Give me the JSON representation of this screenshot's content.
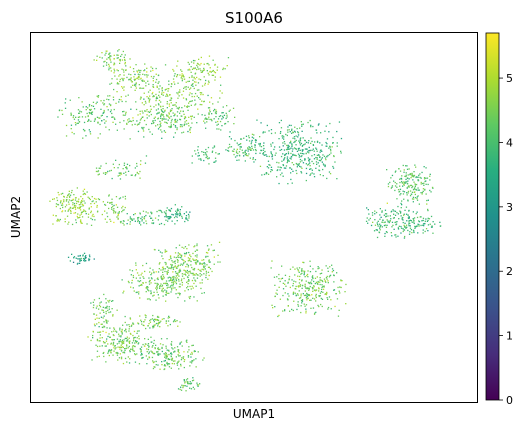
{
  "chart_data": {
    "type": "scatter",
    "title": "S100A6",
    "xlabel": "UMAP1",
    "ylabel": "UMAP2",
    "colormap": "viridis",
    "colorbar": {
      "range": [
        0,
        5.7
      ],
      "ticks": [
        0,
        1,
        2,
        3,
        4,
        5
      ],
      "tick_labels": [
        "0",
        "1",
        "2",
        "3",
        "4",
        "5"
      ]
    },
    "xticks": [],
    "yticks": [],
    "grid": false,
    "legend": "none",
    "clusters": [
      {
        "x": 0.18,
        "y": 0.93,
        "rx": 0.04,
        "ry": 0.03,
        "value": 4.5,
        "n": 60
      },
      {
        "x": 0.23,
        "y": 0.88,
        "rx": 0.05,
        "ry": 0.04,
        "value": 4.6,
        "n": 90
      },
      {
        "x": 0.38,
        "y": 0.9,
        "rx": 0.06,
        "ry": 0.04,
        "value": 4.7,
        "n": 90
      },
      {
        "x": 0.3,
        "y": 0.83,
        "rx": 0.12,
        "ry": 0.08,
        "value": 4.5,
        "n": 300
      },
      {
        "x": 0.14,
        "y": 0.78,
        "rx": 0.08,
        "ry": 0.06,
        "value": 4.2,
        "n": 150
      },
      {
        "x": 0.3,
        "y": 0.76,
        "rx": 0.07,
        "ry": 0.04,
        "value": 4.3,
        "n": 120
      },
      {
        "x": 0.42,
        "y": 0.77,
        "rx": 0.04,
        "ry": 0.04,
        "value": 4.1,
        "n": 60
      },
      {
        "x": 0.6,
        "y": 0.68,
        "rx": 0.09,
        "ry": 0.08,
        "value": 3.8,
        "n": 380
      },
      {
        "x": 0.48,
        "y": 0.69,
        "rx": 0.05,
        "ry": 0.04,
        "value": 4.0,
        "n": 100
      },
      {
        "x": 0.39,
        "y": 0.67,
        "rx": 0.03,
        "ry": 0.025,
        "value": 4.0,
        "n": 40
      },
      {
        "x": 0.85,
        "y": 0.59,
        "rx": 0.05,
        "ry": 0.05,
        "value": 4.1,
        "n": 180
      },
      {
        "x": 0.83,
        "y": 0.49,
        "rx": 0.08,
        "ry": 0.04,
        "value": 3.9,
        "n": 220
      },
      {
        "x": 0.1,
        "y": 0.53,
        "rx": 0.06,
        "ry": 0.05,
        "value": 4.7,
        "n": 180
      },
      {
        "x": 0.19,
        "y": 0.52,
        "rx": 0.03,
        "ry": 0.04,
        "value": 4.5,
        "n": 60
      },
      {
        "x": 0.25,
        "y": 0.5,
        "rx": 0.05,
        "ry": 0.02,
        "value": 4.1,
        "n": 60
      },
      {
        "x": 0.32,
        "y": 0.51,
        "rx": 0.04,
        "ry": 0.025,
        "value": 3.6,
        "n": 70
      },
      {
        "x": 0.2,
        "y": 0.63,
        "rx": 0.06,
        "ry": 0.03,
        "value": 4.3,
        "n": 60
      },
      {
        "x": 0.11,
        "y": 0.39,
        "rx": 0.03,
        "ry": 0.015,
        "value": 3.3,
        "n": 40
      },
      {
        "x": 0.35,
        "y": 0.38,
        "rx": 0.07,
        "ry": 0.05,
        "value": 4.5,
        "n": 200
      },
      {
        "x": 0.3,
        "y": 0.33,
        "rx": 0.09,
        "ry": 0.05,
        "value": 4.4,
        "n": 260
      },
      {
        "x": 0.62,
        "y": 0.31,
        "rx": 0.08,
        "ry": 0.07,
        "value": 4.4,
        "n": 300
      },
      {
        "x": 0.2,
        "y": 0.16,
        "rx": 0.07,
        "ry": 0.05,
        "value": 4.4,
        "n": 220
      },
      {
        "x": 0.31,
        "y": 0.13,
        "rx": 0.07,
        "ry": 0.04,
        "value": 4.3,
        "n": 180
      },
      {
        "x": 0.16,
        "y": 0.24,
        "rx": 0.03,
        "ry": 0.05,
        "value": 4.4,
        "n": 70
      },
      {
        "x": 0.35,
        "y": 0.05,
        "rx": 0.03,
        "ry": 0.02,
        "value": 4.3,
        "n": 40
      },
      {
        "x": 0.27,
        "y": 0.22,
        "rx": 0.06,
        "ry": 0.02,
        "value": 4.5,
        "n": 80
      }
    ]
  }
}
